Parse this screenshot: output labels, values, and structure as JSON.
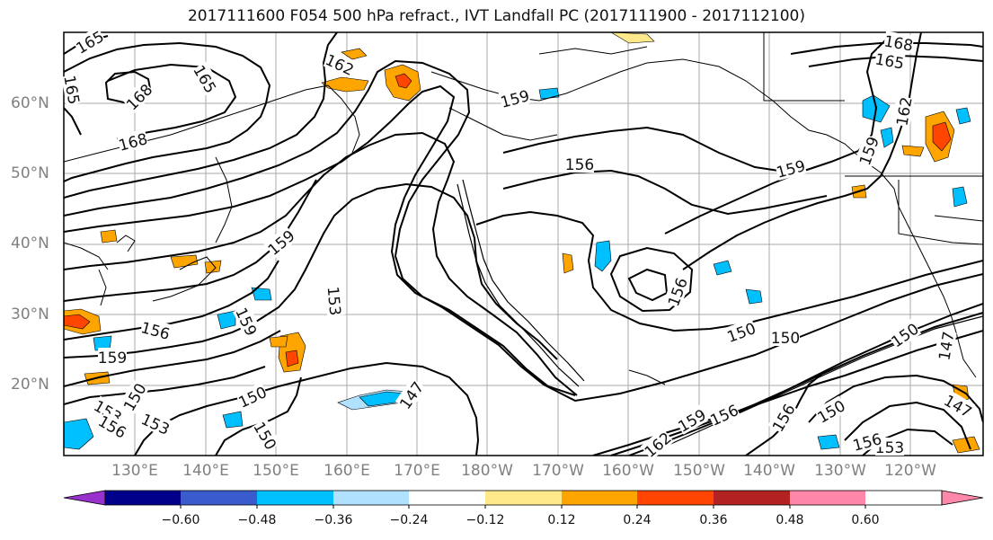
{
  "title": "2017111600 F054 500 hPa refract., IVT Landfall PC (2017111900 - 2017112100)",
  "lat_labels": [
    "60°N",
    "50°N",
    "40°N",
    "30°N",
    "20°N"
  ],
  "lon_labels": [
    "130°E",
    "140°E",
    "150°E",
    "160°E",
    "170°E",
    "180°W",
    "170°W",
    "160°W",
    "150°W",
    "140°W",
    "130°W",
    "120°W"
  ],
  "contour_labels": [
    "165",
    "165",
    "168",
    "165",
    "162",
    "168",
    "159",
    "156",
    "159",
    "159",
    "159",
    "153",
    "156",
    "159",
    "159",
    "156",
    "150",
    "150",
    "147",
    "156",
    "150",
    "150",
    "153",
    "162",
    "159",
    "156",
    "147",
    "147",
    "153",
    "156",
    "150",
    "150",
    "153",
    "156",
    "150",
    "162",
    "165",
    "168"
  ],
  "colorbar": {
    "tick_labels": [
      "−0.60",
      "−0.48",
      "−0.36",
      "−0.24",
      "−0.12",
      "0.12",
      "0.24",
      "0.36",
      "0.48",
      "0.60"
    ],
    "colors": [
      "#9932CC",
      "#00008B",
      "#3A5BCC",
      "#00BFFF",
      "#B0E2FF",
      "#FFFFFF",
      "#FFE98A",
      "#FFA500",
      "#FF4500",
      "#B22222",
      "#FF88AA"
    ]
  }
}
